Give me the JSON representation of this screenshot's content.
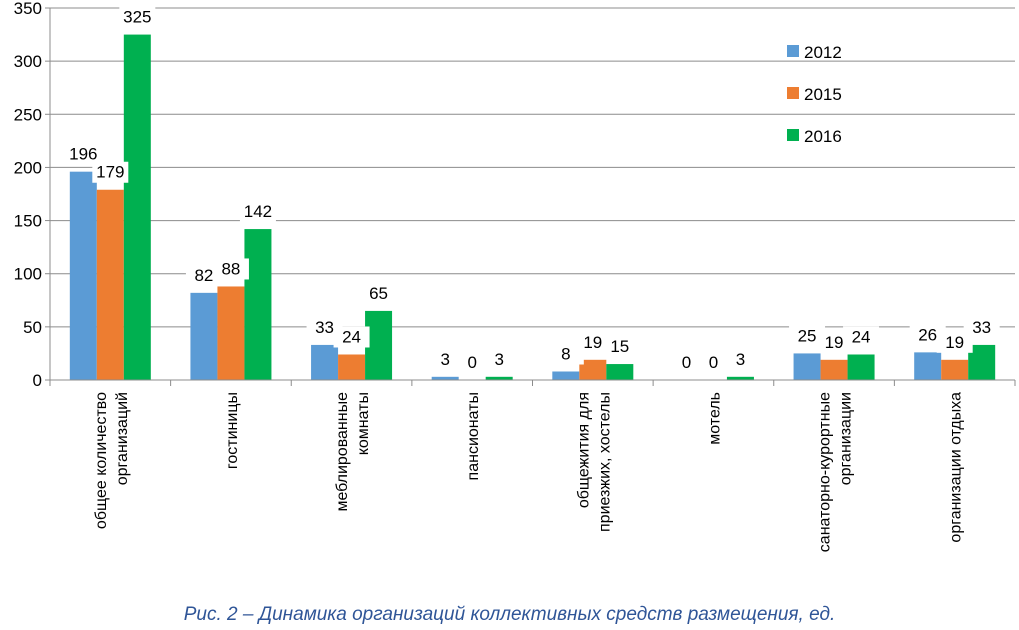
{
  "chart_data": {
    "type": "bar",
    "categories": [
      [
        "общее количество",
        "организаций"
      ],
      [
        "гостиницы"
      ],
      [
        "меблированные",
        "комнаты"
      ],
      [
        "пансионаты"
      ],
      [
        "общежития для",
        "приезжих, хостелы"
      ],
      [
        "мотель"
      ],
      [
        "санаторно-курортные",
        "организации"
      ],
      [
        "организации отдыха"
      ]
    ],
    "series": [
      {
        "name": "2012",
        "color": "#5b9bd5",
        "values": [
          196,
          82,
          33,
          3,
          8,
          0,
          25,
          26
        ]
      },
      {
        "name": "2015",
        "color": "#ed7d31",
        "values": [
          179,
          88,
          24,
          0,
          19,
          0,
          19,
          19
        ]
      },
      {
        "name": "2016",
        "color": "#00b050",
        "values": [
          325,
          142,
          65,
          3,
          15,
          3,
          24,
          33
        ]
      }
    ],
    "yticks": [
      "0",
      "50",
      "100",
      "150",
      "200",
      "250",
      "300",
      "350"
    ],
    "ylim": [
      0,
      350
    ],
    "grid": true,
    "legend": "top-right",
    "data_labels": true
  },
  "caption": "Рис. 2 – Динамика организаций коллективных средств размещения, ед."
}
